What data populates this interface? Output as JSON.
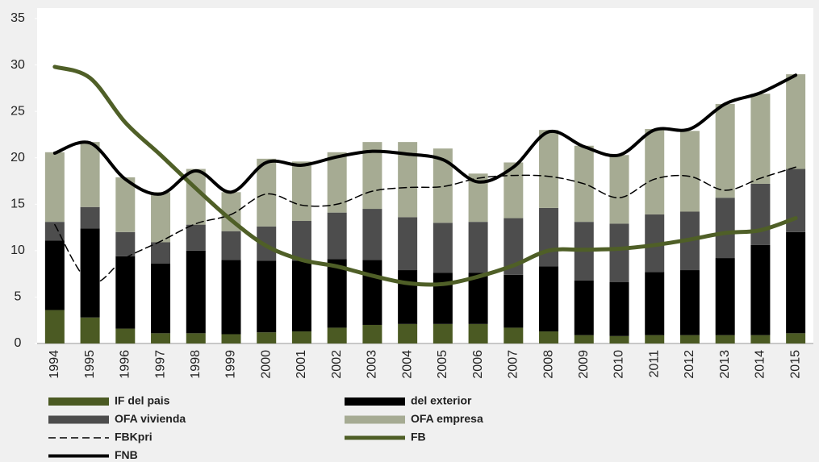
{
  "chart_data": {
    "type": "bar",
    "categories": [
      "1994",
      "1995",
      "1996",
      "1997",
      "1998",
      "1999",
      "2000",
      "2001",
      "2002",
      "2003",
      "2004",
      "2005",
      "2006",
      "2007",
      "2008",
      "2009",
      "2010",
      "2011",
      "2012",
      "2013",
      "2014",
      "2015"
    ],
    "ylim": [
      0,
      35
    ],
    "yticks": [
      0,
      5,
      10,
      15,
      20,
      25,
      30,
      35
    ],
    "stacked": true,
    "series": [
      {
        "name": "IF del pais",
        "type": "bar",
        "color": "#4b5a23",
        "values": [
          3.6,
          2.8,
          1.6,
          1.1,
          1.1,
          1.0,
          1.2,
          1.3,
          1.7,
          2.0,
          2.1,
          2.1,
          2.1,
          1.7,
          1.3,
          0.9,
          0.8,
          0.9,
          0.9,
          0.9,
          0.9,
          1.1
        ]
      },
      {
        "name": "del exterior",
        "type": "bar",
        "color": "#000000",
        "values": [
          7.5,
          9.6,
          7.8,
          7.5,
          8.9,
          8.0,
          7.7,
          7.6,
          7.4,
          7.0,
          5.8,
          5.5,
          5.5,
          5.7,
          7.0,
          5.9,
          5.8,
          6.8,
          7.0,
          8.3,
          9.7,
          10.9
        ]
      },
      {
        "name": "OFA vivienda",
        "type": "bar",
        "color": "#4d4d4d",
        "values": [
          2.0,
          2.3,
          2.6,
          2.3,
          2.8,
          3.1,
          3.7,
          4.3,
          5.0,
          5.5,
          5.7,
          5.4,
          5.5,
          6.1,
          6.3,
          6.3,
          6.3,
          6.2,
          6.3,
          6.5,
          6.6,
          6.8
        ]
      },
      {
        "name": "OFA empresa",
        "type": "bar",
        "color": "#a6ab93",
        "values": [
          7.5,
          7.0,
          5.9,
          5.4,
          6.0,
          4.2,
          7.3,
          6.4,
          6.5,
          7.2,
          8.1,
          8.0,
          5.2,
          6.0,
          8.4,
          8.2,
          7.4,
          9.2,
          8.7,
          10.1,
          9.7,
          10.2
        ]
      },
      {
        "name": "FBKpri",
        "type": "line",
        "color": "#000000",
        "dashed": true,
        "line_width": 1.5,
        "values": [
          12.8,
          6.6,
          9.2,
          11.0,
          12.9,
          13.9,
          16.1,
          14.9,
          15.0,
          16.4,
          16.8,
          16.9,
          17.8,
          18.1,
          18.0,
          17.2,
          15.7,
          17.7,
          18.0,
          16.5,
          17.8,
          19.0
        ]
      },
      {
        "name": "FB",
        "type": "line",
        "color": "#4f5f27",
        "dashed": false,
        "line_width": 5,
        "values": [
          29.8,
          28.6,
          23.8,
          20.3,
          16.7,
          13.3,
          10.5,
          9.0,
          8.3,
          7.3,
          6.5,
          6.4,
          7.2,
          8.4,
          10.0,
          10.1,
          10.2,
          10.6,
          11.2,
          11.9,
          12.2,
          13.5
        ]
      },
      {
        "name": "FNB",
        "type": "line",
        "color": "#000000",
        "dashed": false,
        "line_width": 4,
        "values": [
          20.5,
          21.6,
          17.7,
          16.1,
          18.6,
          16.3,
          19.5,
          19.2,
          20.1,
          20.7,
          20.4,
          19.8,
          17.4,
          19.0,
          22.8,
          21.2,
          20.3,
          23.0,
          23.1,
          25.8,
          27.0,
          28.9
        ]
      }
    ]
  }
}
